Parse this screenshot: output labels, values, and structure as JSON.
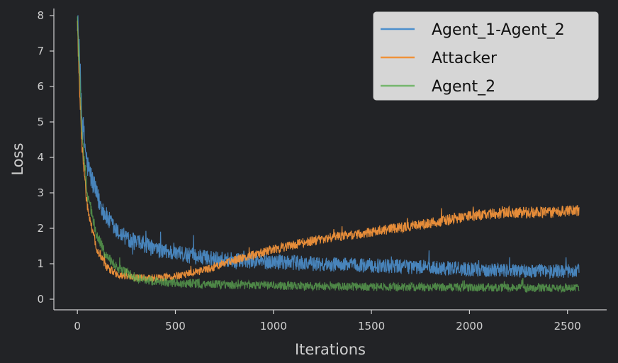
{
  "chart_data": {
    "type": "line",
    "title": "",
    "xlabel": "Iterations",
    "ylabel": "Loss",
    "xlim": [
      -120,
      2700
    ],
    "ylim": [
      -0.3,
      8.2
    ],
    "xticks": [
      0,
      500,
      1000,
      1500,
      2000,
      2500
    ],
    "yticks": [
      0,
      1,
      2,
      3,
      4,
      5,
      6,
      7,
      8
    ],
    "grid": false,
    "legend_position": "top-right",
    "background": "#222326",
    "axis_color": "#cfcfcf",
    "series": [
      {
        "name": "Agent_1-Agent_2",
        "color": "#4c8fcc",
        "opacity": 0.9,
        "noise": 0.45,
        "points": [
          [
            0,
            8.0
          ],
          [
            10,
            6.8
          ],
          [
            25,
            5.0
          ],
          [
            50,
            3.8
          ],
          [
            100,
            2.9
          ],
          [
            150,
            2.3
          ],
          [
            200,
            1.9
          ],
          [
            300,
            1.6
          ],
          [
            400,
            1.4
          ],
          [
            500,
            1.3
          ],
          [
            600,
            1.2
          ],
          [
            700,
            1.15
          ],
          [
            800,
            1.1
          ],
          [
            1000,
            1.05
          ],
          [
            1200,
            1.0
          ],
          [
            1500,
            0.95
          ],
          [
            1800,
            0.9
          ],
          [
            2000,
            0.85
          ],
          [
            2300,
            0.8
          ],
          [
            2560,
            0.8
          ]
        ]
      },
      {
        "name": "Attacker",
        "color": "#f0923a",
        "opacity": 0.95,
        "noise": 0.25,
        "points": [
          [
            0,
            7.9
          ],
          [
            10,
            6.0
          ],
          [
            25,
            4.2
          ],
          [
            50,
            2.6
          ],
          [
            100,
            1.4
          ],
          [
            150,
            0.9
          ],
          [
            200,
            0.7
          ],
          [
            300,
            0.6
          ],
          [
            400,
            0.6
          ],
          [
            500,
            0.65
          ],
          [
            600,
            0.75
          ],
          [
            700,
            0.9
          ],
          [
            800,
            1.1
          ],
          [
            1000,
            1.4
          ],
          [
            1200,
            1.65
          ],
          [
            1500,
            1.9
          ],
          [
            1800,
            2.15
          ],
          [
            2000,
            2.35
          ],
          [
            2200,
            2.45
          ],
          [
            2400,
            2.45
          ],
          [
            2560,
            2.5
          ]
        ]
      },
      {
        "name": "Agent_2",
        "color": "#5fae55",
        "opacity": 0.72,
        "noise": 0.3,
        "points": [
          [
            0,
            7.8
          ],
          [
            10,
            6.5
          ],
          [
            25,
            4.6
          ],
          [
            50,
            3.0
          ],
          [
            100,
            1.8
          ],
          [
            150,
            1.2
          ],
          [
            200,
            0.9
          ],
          [
            300,
            0.6
          ],
          [
            400,
            0.5
          ],
          [
            500,
            0.45
          ],
          [
            700,
            0.42
          ],
          [
            1000,
            0.38
          ],
          [
            1500,
            0.35
          ],
          [
            2000,
            0.33
          ],
          [
            2560,
            0.32
          ]
        ]
      }
    ]
  }
}
